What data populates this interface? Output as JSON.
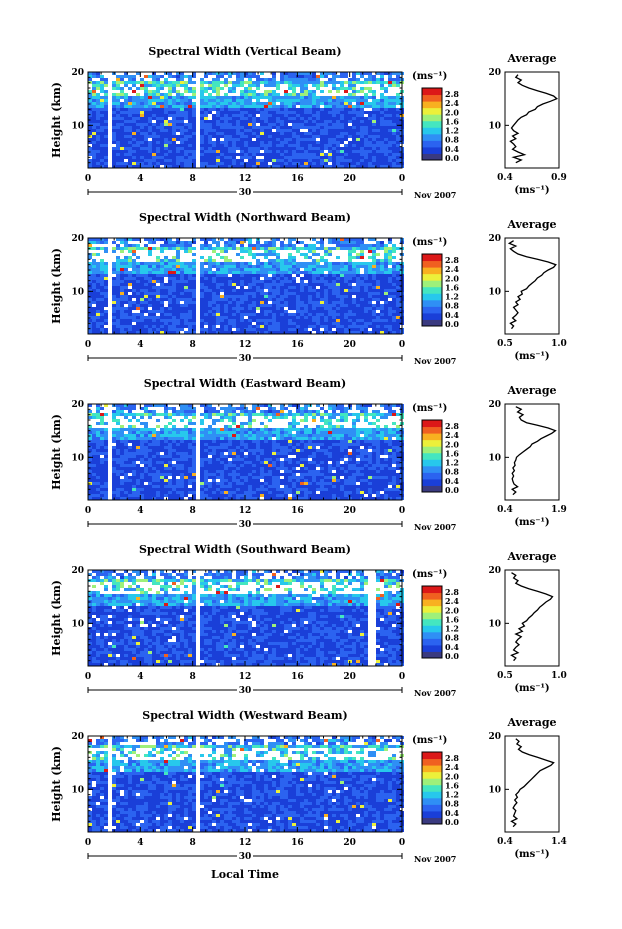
{
  "chart_data": {
    "type": "heatmap",
    "date_label": "Nov 2007",
    "day_label": "30",
    "x_label": "Local Time",
    "y_label": "Height (km)",
    "x_ticks": [
      "0",
      "4",
      "8",
      "12",
      "16",
      "20",
      "0"
    ],
    "y_ticks": [
      "20",
      "10"
    ],
    "xlim": [
      0,
      24
    ],
    "ylim": [
      2,
      20
    ],
    "unit": "(ms⁻¹)",
    "colorbar": {
      "ticks": [
        "2.8",
        "2.4",
        "2.0",
        "1.6",
        "1.2",
        "0.8",
        "0.4",
        "0.0"
      ],
      "range": [
        0,
        3.0
      ],
      "colors": [
        "#3a3a80",
        "#1a3fd8",
        "#2b63f0",
        "#2f8ff5",
        "#27c8ec",
        "#44e6c0",
        "#9ef07a",
        "#ecf03a",
        "#f8b020",
        "#f06020",
        "#dc1818"
      ]
    },
    "average_title": "Average",
    "average_ylim": [
      2,
      20
    ],
    "panels": [
      {
        "title": "Spectral Width (Vertical Beam)",
        "avg_xlim": [
          0.4,
          0.9
        ],
        "avg_xticks": [
          "0.4",
          "0.9"
        ],
        "gaps_hours": [
          1.5,
          8.2
        ],
        "avg_profile": [
          [
            3,
            0.5
          ],
          [
            3.5,
            0.55
          ],
          [
            4,
            0.48
          ],
          [
            4.5,
            0.58
          ],
          [
            5,
            0.52
          ],
          [
            5.5,
            0.47
          ],
          [
            6,
            0.5
          ],
          [
            6.5,
            0.48
          ],
          [
            7,
            0.45
          ],
          [
            7.5,
            0.5
          ],
          [
            8,
            0.47
          ],
          [
            8.5,
            0.52
          ],
          [
            9,
            0.48
          ],
          [
            9.5,
            0.46
          ],
          [
            10,
            0.48
          ],
          [
            10.5,
            0.5
          ],
          [
            11,
            0.52
          ],
          [
            11.5,
            0.55
          ],
          [
            12,
            0.6
          ],
          [
            12.5,
            0.62
          ],
          [
            13,
            0.68
          ],
          [
            13.5,
            0.7
          ],
          [
            14,
            0.75
          ],
          [
            14.5,
            0.82
          ],
          [
            15,
            0.88
          ],
          [
            15.5,
            0.85
          ],
          [
            16,
            0.78
          ],
          [
            16.5,
            0.7
          ],
          [
            17,
            0.62
          ],
          [
            17.5,
            0.56
          ],
          [
            18,
            0.52
          ],
          [
            18.5,
            0.55
          ],
          [
            19,
            0.5
          ],
          [
            19.5,
            0.52
          ]
        ]
      },
      {
        "title": "Spectral Width (Northward Beam)",
        "avg_xlim": [
          0.5,
          1.0
        ],
        "avg_xticks": [
          "0.5",
          "1.0"
        ],
        "gaps_hours": [
          1.5,
          8.2
        ],
        "avg_profile": [
          [
            3,
            0.56
          ],
          [
            3.5,
            0.58
          ],
          [
            4,
            0.55
          ],
          [
            4.5,
            0.6
          ],
          [
            5,
            0.57
          ],
          [
            5.5,
            0.6
          ],
          [
            6,
            0.62
          ],
          [
            6.5,
            0.6
          ],
          [
            7,
            0.58
          ],
          [
            7.5,
            0.62
          ],
          [
            8,
            0.6
          ],
          [
            8.5,
            0.64
          ],
          [
            9,
            0.62
          ],
          [
            9.5,
            0.66
          ],
          [
            10,
            0.65
          ],
          [
            10.5,
            0.7
          ],
          [
            11,
            0.72
          ],
          [
            11.5,
            0.75
          ],
          [
            12,
            0.78
          ],
          [
            12.5,
            0.8
          ],
          [
            13,
            0.84
          ],
          [
            13.5,
            0.86
          ],
          [
            14,
            0.9
          ],
          [
            14.5,
            0.95
          ],
          [
            15,
            0.97
          ],
          [
            15.5,
            0.9
          ],
          [
            16,
            0.8
          ],
          [
            16.5,
            0.7
          ],
          [
            17,
            0.62
          ],
          [
            17.5,
            0.58
          ],
          [
            18,
            0.55
          ],
          [
            18.5,
            0.6
          ],
          [
            19,
            0.54
          ],
          [
            19.5,
            0.58
          ]
        ]
      },
      {
        "title": "Spectral Width (Eastward Beam)",
        "avg_xlim": [
          0.4,
          1.9
        ],
        "avg_xticks": [
          "0.4",
          "1.9"
        ],
        "gaps_hours": [
          1.5,
          8.2
        ],
        "avg_profile": [
          [
            3,
            0.62
          ],
          [
            3.5,
            0.7
          ],
          [
            4,
            0.6
          ],
          [
            4.5,
            0.75
          ],
          [
            5,
            0.65
          ],
          [
            5.5,
            0.62
          ],
          [
            6,
            0.6
          ],
          [
            6.5,
            0.64
          ],
          [
            7,
            0.6
          ],
          [
            7.5,
            0.66
          ],
          [
            8,
            0.62
          ],
          [
            8.5,
            0.68
          ],
          [
            9,
            0.66
          ],
          [
            9.5,
            0.7
          ],
          [
            10,
            0.72
          ],
          [
            10.5,
            0.8
          ],
          [
            11,
            0.9
          ],
          [
            11.5,
            1.0
          ],
          [
            12,
            1.1
          ],
          [
            12.5,
            1.15
          ],
          [
            13,
            1.3
          ],
          [
            13.5,
            1.4
          ],
          [
            14,
            1.55
          ],
          [
            14.5,
            1.7
          ],
          [
            15,
            1.8
          ],
          [
            15.5,
            1.6
          ],
          [
            16,
            1.3
          ],
          [
            16.5,
            1.0
          ],
          [
            17,
            0.85
          ],
          [
            17.5,
            0.8
          ],
          [
            18,
            0.9
          ],
          [
            18.5,
            0.75
          ],
          [
            19,
            0.85
          ],
          [
            19.5,
            0.7
          ]
        ]
      },
      {
        "title": "Spectral Width (Southward Beam)",
        "avg_xlim": [
          0.5,
          1.0
        ],
        "avg_xticks": [
          "0.5",
          "1.0"
        ],
        "gaps_hours": [
          8.2,
          21.6
        ],
        "avg_profile": [
          [
            3,
            0.58
          ],
          [
            3.5,
            0.6
          ],
          [
            4,
            0.56
          ],
          [
            4.5,
            0.62
          ],
          [
            5,
            0.58
          ],
          [
            5.5,
            0.6
          ],
          [
            6,
            0.63
          ],
          [
            6.5,
            0.6
          ],
          [
            7,
            0.62
          ],
          [
            7.5,
            0.65
          ],
          [
            8,
            0.6
          ],
          [
            8.5,
            0.66
          ],
          [
            9,
            0.63
          ],
          [
            9.5,
            0.68
          ],
          [
            10,
            0.66
          ],
          [
            10.5,
            0.7
          ],
          [
            11,
            0.72
          ],
          [
            11.5,
            0.75
          ],
          [
            12,
            0.77
          ],
          [
            12.5,
            0.8
          ],
          [
            13,
            0.82
          ],
          [
            13.5,
            0.85
          ],
          [
            14,
            0.88
          ],
          [
            14.5,
            0.92
          ],
          [
            15,
            0.94
          ],
          [
            15.5,
            0.88
          ],
          [
            16,
            0.8
          ],
          [
            16.5,
            0.72
          ],
          [
            17,
            0.65
          ],
          [
            17.5,
            0.6
          ],
          [
            18,
            0.62
          ],
          [
            18.5,
            0.58
          ],
          [
            19,
            0.6
          ],
          [
            19.5,
            0.56
          ]
        ]
      },
      {
        "title": "Spectral Width (Westward Beam)",
        "avg_xlim": [
          0.4,
          1.4
        ],
        "avg_xticks": [
          "0.4",
          "1.4"
        ],
        "gaps_hours": [
          1.5,
          8.2
        ],
        "avg_profile": [
          [
            3,
            0.55
          ],
          [
            3.5,
            0.6
          ],
          [
            4,
            0.52
          ],
          [
            4.5,
            0.62
          ],
          [
            5,
            0.56
          ],
          [
            5.5,
            0.58
          ],
          [
            6,
            0.6
          ],
          [
            6.5,
            0.55
          ],
          [
            7,
            0.58
          ],
          [
            7.5,
            0.62
          ],
          [
            8,
            0.58
          ],
          [
            8.5,
            0.63
          ],
          [
            9,
            0.6
          ],
          [
            9.5,
            0.65
          ],
          [
            10,
            0.68
          ],
          [
            10.5,
            0.75
          ],
          [
            11,
            0.8
          ],
          [
            11.5,
            0.85
          ],
          [
            12,
            0.9
          ],
          [
            12.5,
            0.95
          ],
          [
            13,
            1.0
          ],
          [
            13.5,
            1.05
          ],
          [
            14,
            1.15
          ],
          [
            14.5,
            1.25
          ],
          [
            15,
            1.3
          ],
          [
            15.5,
            1.15
          ],
          [
            16,
            1.0
          ],
          [
            16.5,
            0.85
          ],
          [
            17,
            0.72
          ],
          [
            17.5,
            0.65
          ],
          [
            18,
            0.7
          ],
          [
            18.5,
            0.62
          ],
          [
            19,
            0.66
          ],
          [
            19.5,
            0.6
          ]
        ]
      }
    ]
  }
}
